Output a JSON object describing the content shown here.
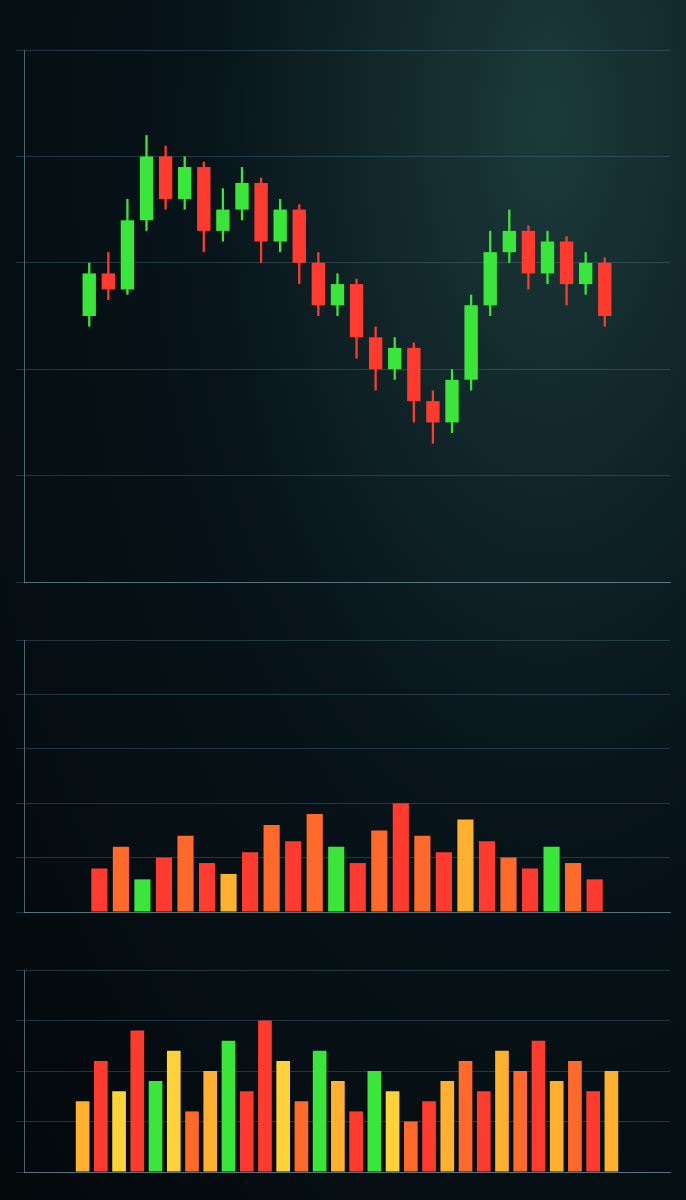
{
  "chart_data": [
    {
      "type": "candlestick",
      "x": [
        1,
        2,
        3,
        4,
        5,
        6,
        7,
        8,
        9,
        10,
        11,
        12,
        13,
        14,
        15,
        16,
        17,
        18,
        19,
        20,
        21,
        22,
        23,
        24,
        25,
        26,
        27,
        28
      ],
      "open": [
        50,
        58,
        55,
        68,
        80,
        72,
        78,
        66,
        70,
        75,
        64,
        70,
        60,
        52,
        56,
        46,
        40,
        44,
        34,
        30,
        38,
        52,
        62,
        66,
        58,
        64,
        56,
        60
      ],
      "close": [
        58,
        55,
        68,
        80,
        72,
        78,
        66,
        70,
        75,
        64,
        70,
        60,
        52,
        56,
        46,
        40,
        44,
        34,
        30,
        38,
        52,
        62,
        66,
        58,
        64,
        56,
        60,
        50
      ],
      "high": [
        60,
        62,
        72,
        84,
        82,
        80,
        79,
        74,
        78,
        76,
        72,
        71,
        62,
        58,
        57,
        48,
        46,
        45,
        36,
        40,
        54,
        66,
        70,
        67,
        66,
        65,
        62,
        61
      ],
      "low": [
        48,
        53,
        54,
        66,
        70,
        70,
        62,
        64,
        68,
        60,
        62,
        56,
        50,
        50,
        42,
        36,
        38,
        30,
        26,
        28,
        36,
        50,
        60,
        55,
        56,
        52,
        54,
        48
      ],
      "colors": [
        "#39e639",
        "#ff3b2f",
        "#39e639",
        "#39e639",
        "#ff3b2f",
        "#39e639",
        "#ff3b2f",
        "#39e639",
        "#39e639",
        "#ff3b2f",
        "#39e639",
        "#ff3b2f",
        "#ff3b2f",
        "#39e639",
        "#ff3b2f",
        "#ff3b2f",
        "#39e639",
        "#ff3b2f",
        "#ff3b2f",
        "#39e639",
        "#39e639",
        "#39e639",
        "#39e639",
        "#ff3b2f",
        "#39e639",
        "#ff3b2f",
        "#39e639",
        "#ff3b2f"
      ],
      "xlim": [
        0,
        29
      ],
      "ylim": [
        0,
        100
      ],
      "yticks": [
        0,
        20,
        40,
        60,
        80,
        100
      ],
      "grid": true,
      "tick_labels": false
    },
    {
      "type": "bar",
      "x": [
        1,
        2,
        3,
        4,
        5,
        6,
        7,
        8,
        9,
        10,
        11,
        12,
        13,
        14,
        15,
        16,
        17,
        18,
        19,
        20,
        21,
        22,
        23,
        24
      ],
      "values": [
        8,
        12,
        6,
        10,
        14,
        9,
        7,
        11,
        16,
        13,
        18,
        12,
        9,
        15,
        20,
        14,
        11,
        17,
        13,
        10,
        8,
        12,
        9,
        6
      ],
      "colors": [
        "#ff3b2f",
        "#ff6a2a",
        "#39e639",
        "#ff3b2f",
        "#ff6a2a",
        "#ff3b2f",
        "#ffb02e",
        "#ff3b2f",
        "#ff6a2a",
        "#ff3b2f",
        "#ff6a2a",
        "#39e639",
        "#ff3b2f",
        "#ff6a2a",
        "#ff3b2f",
        "#ff6a2a",
        "#ff3b2f",
        "#ffb02e",
        "#ff3b2f",
        "#ff6a2a",
        "#ff3b2f",
        "#39e639",
        "#ff6a2a",
        "#ff3b2f"
      ],
      "xlim": [
        0,
        25
      ],
      "ylim": [
        0,
        50
      ],
      "yticks": [
        0,
        10,
        20,
        30,
        40,
        50
      ],
      "grid": true,
      "tick_labels": false
    },
    {
      "type": "bar",
      "x": [
        1,
        2,
        3,
        4,
        5,
        6,
        7,
        8,
        9,
        10,
        11,
        12,
        13,
        14,
        15,
        16,
        17,
        18,
        19,
        20,
        21,
        22,
        23,
        24,
        25,
        26,
        27,
        28,
        29,
        30
      ],
      "values": [
        35,
        55,
        40,
        70,
        45,
        60,
        30,
        50,
        65,
        40,
        75,
        55,
        35,
        60,
        45,
        30,
        50,
        40,
        25,
        35,
        45,
        55,
        40,
        60,
        50,
        65,
        45,
        55,
        40,
        50
      ],
      "colors": [
        "#ffb02e",
        "#ff3b2f",
        "#ffd23a",
        "#ff3b2f",
        "#39e639",
        "#ffd23a",
        "#ff6a2a",
        "#ffb02e",
        "#39e639",
        "#ff3b2f",
        "#ff3b2f",
        "#ffd23a",
        "#ff6a2a",
        "#39e639",
        "#ffb02e",
        "#ff3b2f",
        "#39e639",
        "#ffd23a",
        "#ff6a2a",
        "#ff3b2f",
        "#ffb02e",
        "#ff6a2a",
        "#ff3b2f",
        "#ffb02e",
        "#ff6a2a",
        "#ff3b2f",
        "#ffb02e",
        "#ff6a2a",
        "#ff3b2f",
        "#ffb02e"
      ],
      "xlim": [
        0,
        31
      ],
      "ylim": [
        0,
        100
      ],
      "yticks": [
        0,
        25,
        50,
        75,
        100
      ],
      "grid": true,
      "tick_labels": false
    }
  ]
}
